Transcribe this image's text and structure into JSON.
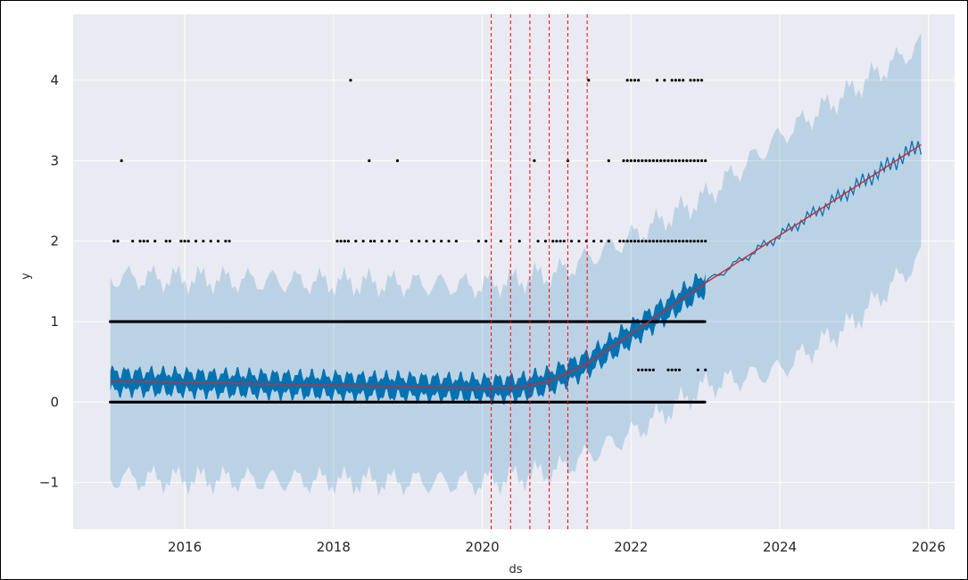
{
  "chart_data": {
    "type": "line",
    "title": "",
    "xlabel": "ds",
    "ylabel": "y",
    "xlim": [
      2014.5,
      2026.35
    ],
    "ylim": [
      -1.58,
      4.82
    ],
    "x_ticks": [
      2016,
      2018,
      2020,
      2022,
      2024,
      2026
    ],
    "x_tick_labels": [
      "2016",
      "2018",
      "2020",
      "2022",
      "2024",
      "2026"
    ],
    "y_ticks": [
      -1,
      0,
      1,
      2,
      3,
      4
    ],
    "y_tick_labels": [
      "−1",
      "0",
      "1",
      "2",
      "3",
      "4"
    ],
    "grid": true,
    "colors": {
      "background": "#eaeaf2",
      "grid": "#ffffff",
      "forecast": "#0072b2",
      "trend": "#d62728",
      "changepoint": "#ff0000",
      "observed": "#000000"
    },
    "changepoints": [
      2020.12,
      2020.38,
      2020.64,
      2020.9,
      2021.15,
      2021.41
    ],
    "trend": {
      "x": [
        2015.0,
        2020.1,
        2020.5,
        2020.9,
        2021.4,
        2023.0,
        2025.9
      ],
      "y": [
        0.26,
        0.17,
        0.18,
        0.26,
        0.47,
        1.48,
        3.2
      ]
    },
    "uncertainty": {
      "x": [
        2015.0,
        2020.0,
        2021.0,
        2022.0,
        2023.0,
        2024.0,
        2025.0,
        2025.9
      ],
      "lower": [
        -0.95,
        -1.0,
        -0.85,
        -0.4,
        0.2,
        0.4,
        1.0,
        1.8
      ],
      "upper": [
        1.55,
        1.45,
        1.6,
        2.05,
        2.55,
        3.3,
        3.9,
        4.45
      ]
    },
    "forecast_band_halfwidth": 0.12,
    "observed_rows": [
      {
        "y": 0,
        "x_range": [
          2015.0,
          2023.0
        ]
      },
      {
        "y": 1,
        "x_range": [
          2015.0,
          2023.0
        ]
      },
      {
        "y": 2,
        "x": [
          2015.05,
          2015.1,
          2015.3,
          2015.4,
          2015.45,
          2015.5,
          2015.6,
          2015.75,
          2015.8,
          2015.95,
          2016.0,
          2016.05,
          2016.15,
          2016.25,
          2016.35,
          2016.45,
          2016.55,
          2016.6,
          2018.05,
          2018.1,
          2018.15,
          2018.2,
          2018.3,
          2018.4,
          2018.5,
          2018.55,
          2018.65,
          2018.75,
          2018.85,
          2019.05,
          2019.15,
          2019.25,
          2019.35,
          2019.45,
          2019.55,
          2019.65,
          2019.95,
          2020.05,
          2020.25,
          2020.5,
          2020.75,
          2020.85,
          2020.95,
          2021.0,
          2021.05,
          2021.1,
          2021.2,
          2021.3,
          2021.4,
          2021.5,
          2021.6,
          2021.7,
          2021.85,
          2021.9,
          2021.95,
          2022.0,
          2022.05,
          2022.1,
          2022.15,
          2022.2,
          2022.25,
          2022.3,
          2022.35,
          2022.4,
          2022.45,
          2022.5,
          2022.55,
          2022.6,
          2022.65,
          2022.7,
          2022.75,
          2022.8,
          2022.85,
          2022.9,
          2022.95,
          2023.0
        ]
      },
      {
        "y": 3,
        "x": [
          2015.15,
          2018.48,
          2018.86,
          2020.7,
          2021.15,
          2021.7,
          2021.9,
          2021.95,
          2022.0,
          2022.05,
          2022.1,
          2022.15,
          2022.2,
          2022.25,
          2022.3,
          2022.35,
          2022.4,
          2022.45,
          2022.5,
          2022.55,
          2022.6,
          2022.65,
          2022.7,
          2022.75,
          2022.8,
          2022.85,
          2022.9,
          2022.95,
          2023.0
        ]
      },
      {
        "y": 4,
        "x": [
          2018.23,
          2021.43,
          2021.95,
          2022.0,
          2022.05,
          2022.1,
          2022.35,
          2022.45,
          2022.55,
          2022.6,
          2022.65,
          2022.7,
          2022.8,
          2022.85,
          2022.9,
          2022.95
        ]
      },
      {
        "y": 0.4,
        "x": [
          2022.1,
          2022.15,
          2022.2,
          2022.25,
          2022.3,
          2022.5,
          2022.55,
          2022.6,
          2022.65,
          2022.9,
          2023.0
        ]
      }
    ]
  }
}
